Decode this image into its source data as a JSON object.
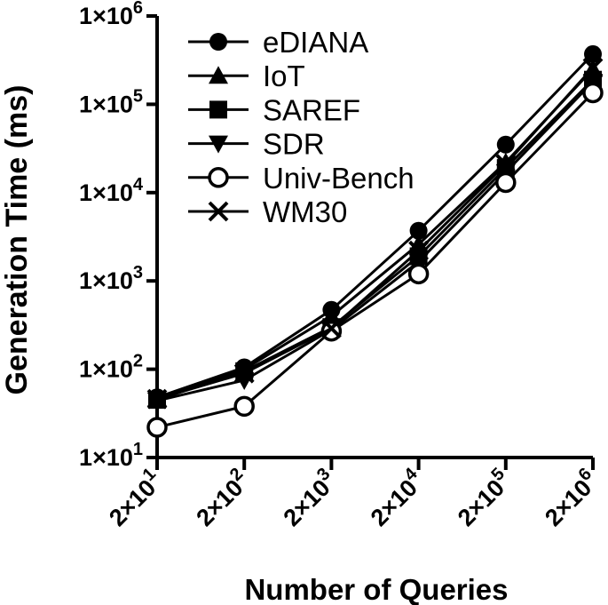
{
  "chart_data": {
    "type": "line",
    "title": "",
    "xlabel": "Number of Queries",
    "ylabel": "Generation Time (ms)",
    "x_scale": "log",
    "y_scale": "log",
    "x": [
      20,
      200,
      2000,
      20000,
      200000,
      2000000
    ],
    "x_tick_labels": [
      {
        "base": "2×10",
        "exp": "1"
      },
      {
        "base": "2×10",
        "exp": "2"
      },
      {
        "base": "2×10",
        "exp": "3"
      },
      {
        "base": "2×10",
        "exp": "4"
      },
      {
        "base": "2×10",
        "exp": "5"
      },
      {
        "base": "2×10",
        "exp": "6"
      }
    ],
    "y_ticks": [
      10,
      100,
      1000,
      10000,
      100000,
      1000000
    ],
    "y_tick_labels": [
      {
        "base": "1×10",
        "exp": "1"
      },
      {
        "base": "1×10",
        "exp": "2"
      },
      {
        "base": "1×10",
        "exp": "3"
      },
      {
        "base": "1×10",
        "exp": "4"
      },
      {
        "base": "1×10",
        "exp": "5"
      },
      {
        "base": "1×10",
        "exp": "6"
      }
    ],
    "ylim": [
      10,
      1000000
    ],
    "grid": false,
    "legend_position": "top-left",
    "series": [
      {
        "name": "eDIANA",
        "marker": "filled-circle",
        "values": [
          48,
          105,
          470,
          3700,
          35000,
          370000
        ]
      },
      {
        "name": "IoT",
        "marker": "filled-triangle-up",
        "values": [
          47,
          100,
          400,
          2600,
          22000,
          250000
        ]
      },
      {
        "name": "SAREF",
        "marker": "filled-square",
        "values": [
          45,
          95,
          300,
          1900,
          19000,
          190000
        ]
      },
      {
        "name": "SDR",
        "marker": "filled-triangle-down",
        "values": [
          44,
          75,
          280,
          1650,
          17000,
          180000
        ]
      },
      {
        "name": "Univ-Bench",
        "marker": "open-circle",
        "values": [
          22,
          38,
          270,
          1200,
          13000,
          135000
        ]
      },
      {
        "name": "WM30",
        "marker": "x",
        "values": [
          46,
          90,
          290,
          2200,
          21000,
          260000
        ]
      }
    ]
  }
}
